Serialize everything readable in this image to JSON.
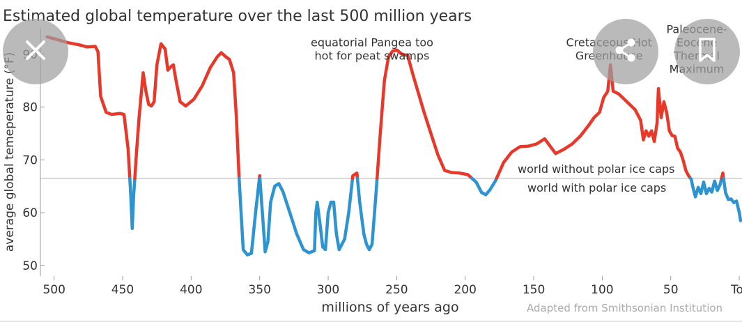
{
  "ui": {
    "close_icon": "close-icon",
    "share_icon": "share-icon",
    "bookmark_icon": "bookmark-icon",
    "overlay_color": "#a0a0a0"
  },
  "chart_data": {
    "type": "line",
    "title": "Estimated global temperature over the last 500 million years",
    "xlabel": "millions of years ago",
    "ylabel": "average global temeperature (°F)",
    "credit": "Adapted from Smithsonian Institution",
    "xlim": [
      510,
      -2
    ],
    "ylim": [
      48,
      95
    ],
    "x_ticks": [
      {
        "value": 500,
        "label": "500"
      },
      {
        "value": 450,
        "label": "450"
      },
      {
        "value": 400,
        "label": "400"
      },
      {
        "value": 350,
        "label": "350"
      },
      {
        "value": 300,
        "label": "300"
      },
      {
        "value": 250,
        "label": "250"
      },
      {
        "value": 200,
        "label": "200"
      },
      {
        "value": 150,
        "label": "150"
      },
      {
        "value": 100,
        "label": "100"
      },
      {
        "value": 50,
        "label": "50"
      },
      {
        "value": 0,
        "label": "Today"
      }
    ],
    "y_ticks": [
      {
        "value": 90,
        "label": "90"
      },
      {
        "value": 80,
        "label": "80"
      },
      {
        "value": 70,
        "label": "70"
      },
      {
        "value": 60,
        "label": "60"
      },
      {
        "value": 50,
        "label": "50"
      }
    ],
    "threshold": {
      "value": 66.5,
      "label_above": "world without polar ice caps",
      "label_below": "world with polar ice caps"
    },
    "colors": {
      "above": "#e8382a",
      "below": "#2d93d1",
      "threshold_line": "#cccccc",
      "text": "#333333",
      "credit": "#aaaaaa"
    },
    "annotations": [
      {
        "x": 268,
        "y": 91.5,
        "lines": [
          "equatorial Pangea too",
          "hot for peat swamps"
        ]
      },
      {
        "x": 95,
        "y": 91.5,
        "lines": [
          "Cretaceous Hot",
          "Greenhouse"
        ]
      },
      {
        "x": 31,
        "y": 94,
        "lines": [
          "Paleocene-",
          "Eocene",
          "Thermal",
          "Maximum"
        ]
      }
    ],
    "series": [
      {
        "points": [
          [
            505,
            93.3
          ],
          [
            498,
            92.8
          ],
          [
            490,
            92.2
          ],
          [
            482,
            91.8
          ],
          [
            476,
            91.4
          ],
          [
            470,
            91.5
          ],
          [
            468,
            90.5
          ],
          [
            466,
            82
          ],
          [
            462,
            79
          ],
          [
            458,
            78.6
          ],
          [
            452,
            78.8
          ],
          [
            449,
            78.6
          ],
          [
            446,
            72
          ],
          [
            444,
            63
          ],
          [
            443,
            57
          ],
          [
            442,
            63
          ],
          [
            440,
            71
          ],
          [
            438,
            78
          ],
          [
            435,
            86.5
          ],
          [
            433,
            83
          ],
          [
            431,
            80.5
          ],
          [
            429,
            80.2
          ],
          [
            427,
            81
          ],
          [
            425,
            88
          ],
          [
            422,
            92
          ],
          [
            419,
            91
          ],
          [
            417,
            87
          ],
          [
            415,
            87.6
          ],
          [
            413,
            88
          ],
          [
            411,
            85
          ],
          [
            408,
            81
          ],
          [
            404,
            80.2
          ],
          [
            398,
            81.5
          ],
          [
            392,
            84
          ],
          [
            386,
            87.5
          ],
          [
            381,
            89.5
          ],
          [
            378,
            90.3
          ],
          [
            375,
            89.6
          ],
          [
            372,
            89
          ],
          [
            369,
            86.5
          ],
          [
            367,
            78
          ],
          [
            365,
            66.5
          ],
          [
            362,
            53
          ],
          [
            359,
            52
          ],
          [
            356,
            52.3
          ],
          [
            353,
            60
          ],
          [
            350,
            67
          ],
          [
            348,
            60
          ],
          [
            346,
            52.6
          ],
          [
            344,
            54.5
          ],
          [
            342,
            62
          ],
          [
            339,
            65
          ],
          [
            336,
            65.5
          ],
          [
            333,
            64
          ],
          [
            328,
            60
          ],
          [
            323,
            56
          ],
          [
            318,
            53
          ],
          [
            314,
            52.4
          ],
          [
            310,
            52.8
          ],
          [
            309,
            60
          ],
          [
            308,
            62
          ],
          [
            306,
            58
          ],
          [
            304,
            53.5
          ],
          [
            302,
            53
          ],
          [
            300,
            60
          ],
          [
            298,
            62
          ],
          [
            296,
            62
          ],
          [
            294,
            56
          ],
          [
            292,
            53
          ],
          [
            290,
            54
          ],
          [
            288,
            55
          ],
          [
            285,
            60
          ],
          [
            282,
            67
          ],
          [
            279,
            67.5
          ],
          [
            277,
            62
          ],
          [
            274,
            56
          ],
          [
            272,
            54
          ],
          [
            270,
            53
          ],
          [
            268,
            54
          ],
          [
            265,
            64
          ],
          [
            262,
            75
          ],
          [
            259,
            85
          ],
          [
            256,
            89.5
          ],
          [
            253,
            90.6
          ],
          [
            250,
            90.8
          ],
          [
            246,
            90
          ],
          [
            242,
            89.8
          ],
          [
            238,
            86
          ],
          [
            230,
            79
          ],
          [
            225,
            75
          ],
          [
            220,
            71
          ],
          [
            215,
            68
          ],
          [
            210,
            67.6
          ],
          [
            204,
            67.5
          ],
          [
            198,
            67.2
          ],
          [
            192,
            65.8
          ],
          [
            188,
            63.8
          ],
          [
            185,
            63.4
          ],
          [
            182,
            64.3
          ],
          [
            178,
            66
          ],
          [
            172,
            69.5
          ],
          [
            166,
            71.5
          ],
          [
            160,
            72.5
          ],
          [
            154,
            72.6
          ],
          [
            148,
            73
          ],
          [
            142,
            74
          ],
          [
            138,
            72.6
          ],
          [
            134,
            71.2
          ],
          [
            128,
            72
          ],
          [
            122,
            73
          ],
          [
            116,
            74.5
          ],
          [
            110,
            76.5
          ],
          [
            106,
            78
          ],
          [
            102,
            79
          ],
          [
            99,
            81.8
          ],
          [
            96,
            83
          ],
          [
            94,
            88
          ],
          [
            92,
            83
          ],
          [
            88,
            82.5
          ],
          [
            82,
            81
          ],
          [
            76,
            79.5
          ],
          [
            72,
            77.5
          ],
          [
            70,
            73.8
          ],
          [
            68,
            75.5
          ],
          [
            66,
            74.5
          ],
          [
            64,
            75.5
          ],
          [
            62,
            73.5
          ],
          [
            60,
            77
          ],
          [
            59,
            83.5
          ],
          [
            57,
            78
          ],
          [
            55,
            81
          ],
          [
            53,
            79
          ],
          [
            51,
            75.5
          ],
          [
            49,
            74.6
          ],
          [
            47,
            74.5
          ],
          [
            45,
            72.2
          ],
          [
            43,
            71.5
          ],
          [
            41,
            70
          ],
          [
            39,
            68
          ],
          [
            37,
            67
          ],
          [
            35,
            66.3
          ],
          [
            34,
            65
          ],
          [
            32,
            63
          ],
          [
            30,
            64.8
          ],
          [
            28,
            63.6
          ],
          [
            26,
            65.8
          ],
          [
            24,
            63.6
          ],
          [
            22,
            64.6
          ],
          [
            20,
            63.9
          ],
          [
            18,
            66
          ],
          [
            16,
            64.2
          ],
          [
            14,
            65.3
          ],
          [
            12,
            67.5
          ],
          [
            10,
            63.8
          ],
          [
            8,
            62.5
          ],
          [
            6,
            62.6
          ],
          [
            4,
            61.9
          ],
          [
            2,
            62.2
          ],
          [
            0,
            60
          ],
          [
            -1,
            58.5
          ]
        ]
      }
    ]
  }
}
